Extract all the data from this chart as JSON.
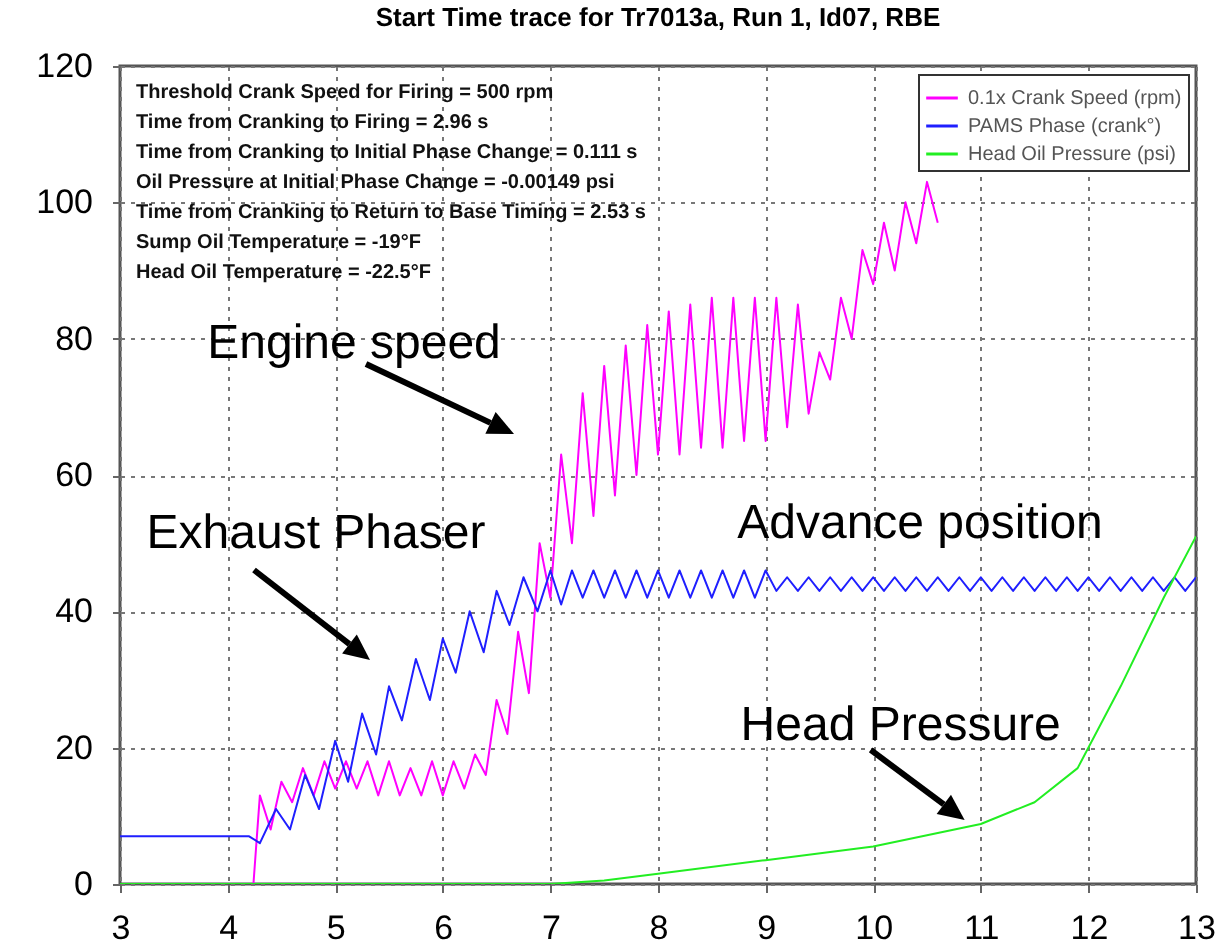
{
  "chart_data": {
    "type": "line",
    "title": "Start Time trace for Tr7013a, Run 1, Id07, RBE",
    "series": [
      {
        "name": "0.1x Crank Speed (rpm)",
        "color": "#ff00ff",
        "x": [
          3,
          4.24,
          4.3,
          4.4,
          4.5,
          4.6,
          4.7,
          4.8,
          4.9,
          5.0,
          5.1,
          5.2,
          5.3,
          5.4,
          5.5,
          5.6,
          5.7,
          5.8,
          5.9,
          6.0,
          6.1,
          6.2,
          6.3,
          6.4,
          6.5,
          6.6,
          6.7,
          6.8,
          6.9,
          7.0,
          7.1,
          7.2,
          7.3,
          7.4,
          7.5,
          7.6,
          7.7,
          7.8,
          7.9,
          8.0,
          8.1,
          8.2,
          8.3,
          8.4,
          8.5,
          8.6,
          8.7,
          8.8,
          8.9,
          9.0,
          9.1,
          9.2,
          9.3,
          9.4,
          9.5,
          9.6,
          9.7,
          9.8,
          9.9,
          10.0,
          10.1,
          10.2,
          10.3,
          10.4,
          10.5,
          10.6
        ],
        "values": [
          0,
          0,
          13,
          8,
          15,
          12,
          17,
          13,
          18,
          14,
          18,
          14,
          18,
          13,
          18,
          13,
          17,
          13,
          18,
          13,
          18,
          14,
          19,
          16,
          27,
          22,
          37,
          28,
          50,
          42,
          63,
          50,
          72,
          54,
          76,
          57,
          79,
          60,
          82,
          63,
          84,
          63,
          85,
          64,
          86,
          64,
          86,
          65,
          86,
          65,
          86,
          67,
          85,
          69,
          78,
          74,
          86,
          80,
          93,
          88,
          97,
          90,
          100,
          94,
          103,
          97
        ]
      },
      {
        "name": "PAMS Phase (crank°)",
        "color": "#1f1fff",
        "x": [
          3,
          4.2,
          4.3,
          4.45,
          4.58,
          4.72,
          4.85,
          5.0,
          5.12,
          5.25,
          5.38,
          5.5,
          5.62,
          5.75,
          5.88,
          6.0,
          6.12,
          6.25,
          6.38,
          6.5,
          6.62,
          6.75,
          6.88,
          7.0,
          7.1,
          7.2,
          7.3,
          7.4,
          7.5,
          7.6,
          7.7,
          7.8,
          7.9,
          8.0,
          8.1,
          8.2,
          8.3,
          8.4,
          8.5,
          8.6,
          8.7,
          8.8,
          8.9,
          9.0,
          9.1,
          9.2,
          9.3,
          9.4,
          9.5,
          9.6,
          9.7,
          9.8,
          9.9,
          10.0,
          10.1,
          10.2,
          10.3,
          10.4,
          10.5,
          10.6,
          10.7,
          10.8,
          10.9,
          11.0,
          11.1,
          11.2,
          11.3,
          11.4,
          11.5,
          11.6,
          11.7,
          11.8,
          11.9,
          12.0,
          12.1,
          12.2,
          12.3,
          12.4,
          12.5,
          12.6,
          12.7,
          12.8,
          12.9,
          13.0
        ],
        "values": [
          7,
          7,
          6,
          11,
          8,
          16,
          11,
          21,
          15,
          25,
          19,
          29,
          24,
          33,
          27,
          36,
          31,
          40,
          34,
          43,
          38,
          45,
          40,
          46,
          41,
          46,
          42,
          46,
          42,
          46,
          42,
          46,
          42,
          46,
          42,
          46,
          42,
          46,
          42,
          46,
          42,
          46,
          42,
          46,
          43,
          45,
          43,
          45,
          43,
          45,
          43,
          45,
          43,
          45,
          43,
          45,
          43,
          45,
          43,
          45,
          43,
          45,
          43,
          45,
          43,
          45,
          43,
          45,
          43,
          45,
          43,
          45,
          43,
          45,
          43,
          45,
          43,
          45,
          43,
          45,
          43,
          45,
          43,
          45
        ]
      },
      {
        "name": "Head Oil Pressure (psi)",
        "color": "#22ee22",
        "x": [
          3,
          7,
          7.5,
          8,
          9,
          10,
          11,
          11.5,
          11.9,
          12.3,
          12.7,
          13
        ],
        "values": [
          0,
          0,
          0.5,
          1.5,
          3.5,
          5.5,
          8.8,
          12,
          17,
          29,
          42,
          51
        ]
      }
    ],
    "xlim": [
      3,
      13
    ],
    "xticks": [
      3,
      4,
      5,
      6,
      7,
      8,
      9,
      10,
      11,
      12,
      13
    ],
    "ylim": [
      0,
      120
    ],
    "yticks": [
      0,
      20,
      40,
      60,
      80,
      100,
      120
    ],
    "grid": true,
    "legend": "top right",
    "annotations": [
      "Threshold Crank Speed for Firing = 500 rpm",
      "Time from Cranking to Firing = 2.96 s",
      "Time from Cranking to Initial Phase Change = 0.111 s",
      "Oil Pressure at Initial Phase Change = -0.00149 psi",
      "Time from Cranking to Return to Base Timing = 2.53 s",
      "Sump Oil Temperature = -19°F",
      "Head Oil Temperature = -22.5°F",
      "Engine speed",
      "Exhaust Phaser",
      "Advance position",
      {
        "text": "Head Pressure",
        "x": 10.85,
        "y": 9.4
      }
    ]
  }
}
